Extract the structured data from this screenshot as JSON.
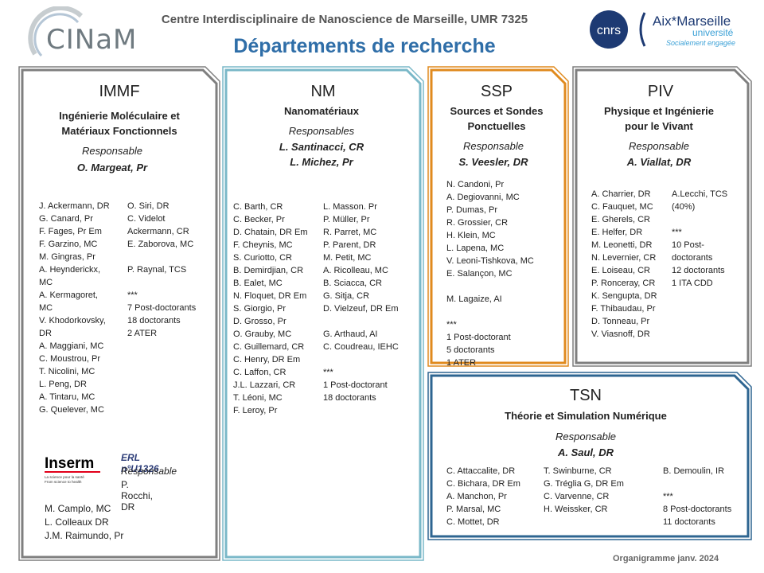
{
  "header": {
    "title": "Centre Interdisciplinaire de Nanoscience de Marseille, UMR 7325",
    "subtitle": "Départements de recherche",
    "cinam_logo_text": "CINaM",
    "cnrs_logo_text": "cnrs",
    "amu_logo_line1": "Aix*Marseille",
    "amu_logo_line2": "université",
    "amu_logo_line3": "Socialement engagée"
  },
  "colors": {
    "immf_border": "#7f7f7f",
    "nm_border": "#7ab8c8",
    "ssp_border": "#e08a1e",
    "piv_border": "#7f7f7f",
    "tsn_border": "#2e6591",
    "subtitle": "#2f6ea8"
  },
  "immf": {
    "title": "IMMF",
    "fullname_line1": "Ingénierie Moléculaire et",
    "fullname_line2": "Matériaux Fonctionnels",
    "resp_label": "Responsable",
    "resp_name": "O. Margeat, Pr",
    "col1": "J. Ackermann, DR\nG. Canard, Pr\nF. Fages, Pr Em\nF. Garzino, MC\nM. Gingras, Pr\nA. Heynderickx,\nMC\nA. Kermagoret,\nMC\nV. Khodorkovsky,\nDR\nA. Maggiani, MC\nC. Moustrou, Pr\nT. Nicolini, MC\nL. Peng, DR\nA. Tintaru, MC\nG. Quelever, MC",
    "col2": "O. Siri, DR\nC. Videlot\nAckermann, CR\nE. Zaborova, MC\n\nP. Raynal, TCS\n\n***\n7 Post-doctorants\n18 doctorants\n2 ATER",
    "inserm_logo_text": "Inserm",
    "inserm_tagline1": "La science pour la santé",
    "inserm_tagline2": "From science to health",
    "erl_title": "ERL n°U1326",
    "erl_resp_label": "Responsable",
    "erl_resp_name": "P. Rocchi, DR",
    "erl_members": "M. Camplo, MC\nL. Colleaux  DR\nJ.M. Raimundo, Pr"
  },
  "nm": {
    "title": "NM",
    "fullname": "Nanomatériaux",
    "resp_label": "Responsables",
    "resp_name1": "L. Santinacci, CR",
    "resp_name2": "L. Michez, Pr",
    "col1": "C. Barth, CR\nC. Becker,  Pr\nD. Chatain, DR Em\nF. Cheynis, MC\nS. Curiotto, CR\nB. Demirdjian, CR\nB. Ealet, MC\nN. Floquet, DR Em\nS. Giorgio, Pr\nD. Grosso, Pr\nO. Grauby, MC\nC. Guillemard, CR\nC. Henry, DR Em\nC. Laffon, CR\nJ.L. Lazzari, CR\nT. Léoni, MC\nF. Leroy,  Pr",
    "col2": "L. Masson. Pr\nP. Müller, Pr\nR. Parret, MC\nP. Parent, DR\nM. Petit, MC\nA. Ricolleau, MC\nB. Sciacca, CR\nG. Sitja, CR\nD. Vielzeuf, DR Em\n\nG. Arthaud, AI\nC. Coudreau, IEHC\n\n***\n1 Post-doctorant\n18 doctorants"
  },
  "ssp": {
    "title": "SSP",
    "fullname_line1": "Sources et Sondes",
    "fullname_line2": "Ponctuelles",
    "resp_label": "Responsable",
    "resp_name": "S. Veesler, DR",
    "col1": "N. Candoni, Pr\nA. Degiovanni, MC\nP. Dumas, Pr\nR. Grossier, CR\nH. Klein, MC\nL. Lapena, MC\nV. Leoni-Tishkova, MC\nE. Salançon, MC\n\nM. Lagaize, AI\n\n***\n1 Post-doctorant\n5 doctorants\n1 ATER"
  },
  "piv": {
    "title": "PIV",
    "fullname_line1": "Physique et Ingénierie",
    "fullname_line2": "pour le Vivant",
    "resp_label": "Responsable",
    "resp_name": "A. Viallat, DR",
    "col1": "A. Charrier, DR\nC. Fauquet, MC\nE. Gherels, CR\nE. Helfer, DR\nM. Leonetti,  DR\nN. Levernier, CR\nE. Loiseau, CR\nP. Ronceray, CR\nK. Sengupta,  DR\nF. Thibaudau, Pr\nD. Tonneau,  Pr\nV. Viasnoff, DR",
    "col2": "A.Lecchi, TCS\n(40%)\n\n***\n10 Post-\ndoctorants\n12 doctorants\n1 ITA CDD"
  },
  "tsn": {
    "title": "TSN",
    "fullname": "Théorie et Simulation Numérique",
    "resp_label": "Responsable",
    "resp_name": "A. Saul,  DR",
    "col1": "C. Attaccalite, DR\nC. Bichara, DR Em\nA. Manchon, Pr\nP. Marsal, MC\nC. Mottet,  DR",
    "col2": "T. Swinburne, CR\nG. Tréglia G, DR Em\nC. Varvenne,  CR\nH. Weissker, CR",
    "col3": "B. Demoulin, IR\n\n***\n8 Post-doctorants\n11 doctorants"
  },
  "footer": "Organigramme janv. 2024"
}
